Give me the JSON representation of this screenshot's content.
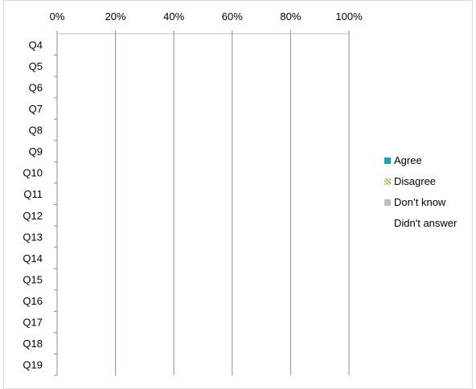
{
  "chart_data": {
    "type": "bar",
    "orientation": "horizontal",
    "stacked": "percent",
    "categories": [
      "Q4",
      "Q5",
      "Q6",
      "Q7",
      "Q8",
      "Q9",
      "Q10",
      "Q11",
      "Q12",
      "Q13",
      "Q14",
      "Q15",
      "Q16",
      "Q17",
      "Q18",
      "Q19"
    ],
    "x_ticks": [
      "0%",
      "20%",
      "40%",
      "60%",
      "80%",
      "100%"
    ],
    "xlim": [
      0,
      100
    ],
    "grid": true,
    "legend_position": "right",
    "series": [
      {
        "name": "Agree",
        "color": "#1aa3b5",
        "values": [
          0,
          0,
          0,
          0,
          0,
          0,
          0,
          0,
          0,
          0,
          0,
          0,
          0,
          0,
          0,
          0
        ]
      },
      {
        "name": "Disagree",
        "color": "#9ac23c",
        "pattern": "diagonal-stripes",
        "values": [
          0,
          0,
          0,
          0,
          0,
          0,
          0,
          0,
          0,
          0,
          0,
          0,
          0,
          0,
          0,
          0
        ]
      },
      {
        "name": "Don’t know",
        "color": "#bfbfbf",
        "values": [
          0,
          0,
          0,
          0,
          0,
          0,
          0,
          0,
          0,
          0,
          0,
          0,
          0,
          0,
          0,
          0
        ]
      },
      {
        "name": "Didn't answer",
        "color": "#ffffff",
        "values": [
          0,
          0,
          0,
          0,
          0,
          0,
          0,
          0,
          0,
          0,
          0,
          0,
          0,
          0,
          0,
          0
        ]
      }
    ]
  }
}
